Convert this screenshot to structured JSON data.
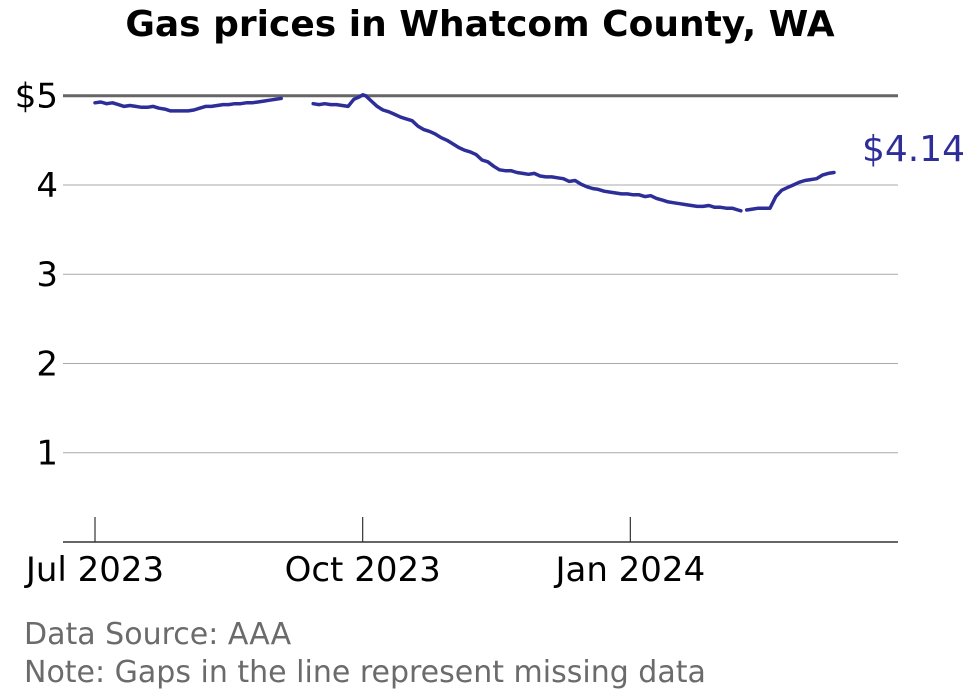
{
  "colors": {
    "line": "#2e2e99",
    "grid": "#aaaaaa",
    "threshold": "#666666",
    "axis": "#333333",
    "footer": "#6b6b6b"
  },
  "footer": {
    "source": "Data Source: AAA",
    "note": "Note: Gaps in the line represent missing data"
  },
  "chart_data": {
    "type": "line",
    "title": "Gas prices in Whatcom County, WA",
    "xlabel": "",
    "ylabel": "",
    "x_range": [
      "2023-06-20",
      "2024-04-02"
    ],
    "ylim": [
      0,
      5.4
    ],
    "y_ticks": [
      {
        "value": 1,
        "label": "1"
      },
      {
        "value": 2,
        "label": "2"
      },
      {
        "value": 3,
        "label": "3"
      },
      {
        "value": 4,
        "label": "4"
      },
      {
        "value": 5,
        "label": "$5"
      }
    ],
    "x_ticks": [
      {
        "date": "2023-07-01",
        "label": "Jul 2023"
      },
      {
        "date": "2023-10-01",
        "label": "Oct 2023"
      },
      {
        "date": "2024-01-01",
        "label": "Jan 2024"
      }
    ],
    "reference_line": {
      "value": 5
    },
    "grid": "horizontal",
    "end_label": "$4.14",
    "series": [
      {
        "segments": [
          [
            [
              "2023-07-01",
              4.92
            ],
            [
              "2023-07-03",
              4.93
            ],
            [
              "2023-07-05",
              4.91
            ],
            [
              "2023-07-07",
              4.92
            ],
            [
              "2023-07-09",
              4.9
            ],
            [
              "2023-07-11",
              4.88
            ],
            [
              "2023-07-13",
              4.89
            ],
            [
              "2023-07-15",
              4.88
            ],
            [
              "2023-07-17",
              4.87
            ],
            [
              "2023-07-19",
              4.87
            ],
            [
              "2023-07-21",
              4.88
            ],
            [
              "2023-07-23",
              4.86
            ],
            [
              "2023-07-25",
              4.85
            ],
            [
              "2023-07-27",
              4.83
            ],
            [
              "2023-07-29",
              4.83
            ],
            [
              "2023-07-31",
              4.83
            ],
            [
              "2023-08-02",
              4.83
            ],
            [
              "2023-08-04",
              4.84
            ],
            [
              "2023-08-06",
              4.86
            ],
            [
              "2023-08-08",
              4.88
            ],
            [
              "2023-08-10",
              4.88
            ],
            [
              "2023-08-12",
              4.89
            ],
            [
              "2023-08-14",
              4.9
            ],
            [
              "2023-08-16",
              4.9
            ],
            [
              "2023-08-18",
              4.91
            ],
            [
              "2023-08-20",
              4.91
            ],
            [
              "2023-08-22",
              4.92
            ],
            [
              "2023-08-24",
              4.92
            ],
            [
              "2023-08-26",
              4.93
            ],
            [
              "2023-08-28",
              4.94
            ],
            [
              "2023-08-30",
              4.95
            ],
            [
              "2023-09-01",
              4.96
            ],
            [
              "2023-09-03",
              4.97
            ]
          ],
          [
            [
              "2023-09-14",
              4.91
            ],
            [
              "2023-09-16",
              4.9
            ],
            [
              "2023-09-18",
              4.91
            ],
            [
              "2023-09-20",
              4.9
            ],
            [
              "2023-09-22",
              4.9
            ],
            [
              "2023-09-24",
              4.89
            ],
            [
              "2023-09-26",
              4.88
            ],
            [
              "2023-09-27",
              4.92
            ],
            [
              "2023-09-28",
              4.96
            ],
            [
              "2023-09-30",
              4.99
            ],
            [
              "2023-10-01",
              5.01
            ],
            [
              "2023-10-02",
              5.0
            ],
            [
              "2023-10-04",
              4.94
            ],
            [
              "2023-10-06",
              4.88
            ],
            [
              "2023-10-08",
              4.84
            ],
            [
              "2023-10-10",
              4.82
            ],
            [
              "2023-10-12",
              4.79
            ],
            [
              "2023-10-14",
              4.76
            ],
            [
              "2023-10-16",
              4.74
            ],
            [
              "2023-10-18",
              4.72
            ],
            [
              "2023-10-20",
              4.66
            ],
            [
              "2023-10-22",
              4.62
            ],
            [
              "2023-10-24",
              4.6
            ],
            [
              "2023-10-26",
              4.57
            ],
            [
              "2023-10-28",
              4.53
            ],
            [
              "2023-10-30",
              4.5
            ],
            [
              "2023-11-01",
              4.46
            ],
            [
              "2023-11-03",
              4.42
            ],
            [
              "2023-11-05",
              4.39
            ],
            [
              "2023-11-07",
              4.37
            ],
            [
              "2023-11-09",
              4.34
            ],
            [
              "2023-11-11",
              4.28
            ],
            [
              "2023-11-13",
              4.26
            ],
            [
              "2023-11-15",
              4.21
            ],
            [
              "2023-11-17",
              4.17
            ],
            [
              "2023-11-19",
              4.16
            ],
            [
              "2023-11-21",
              4.16
            ],
            [
              "2023-11-23",
              4.14
            ],
            [
              "2023-11-25",
              4.13
            ],
            [
              "2023-11-27",
              4.12
            ],
            [
              "2023-11-29",
              4.13
            ],
            [
              "2023-12-01",
              4.1
            ],
            [
              "2023-12-03",
              4.09
            ],
            [
              "2023-12-05",
              4.09
            ],
            [
              "2023-12-07",
              4.08
            ],
            [
              "2023-12-09",
              4.07
            ],
            [
              "2023-12-11",
              4.04
            ],
            [
              "2023-12-13",
              4.05
            ],
            [
              "2023-12-15",
              4.01
            ],
            [
              "2023-12-17",
              3.98
            ],
            [
              "2023-12-19",
              3.96
            ],
            [
              "2023-12-21",
              3.95
            ],
            [
              "2023-12-23",
              3.93
            ],
            [
              "2023-12-25",
              3.92
            ],
            [
              "2023-12-27",
              3.91
            ],
            [
              "2023-12-29",
              3.9
            ],
            [
              "2023-12-31",
              3.9
            ],
            [
              "2024-01-02",
              3.89
            ],
            [
              "2024-01-04",
              3.89
            ],
            [
              "2024-01-06",
              3.87
            ],
            [
              "2024-01-08",
              3.88
            ],
            [
              "2024-01-10",
              3.85
            ],
            [
              "2024-01-12",
              3.83
            ],
            [
              "2024-01-14",
              3.81
            ],
            [
              "2024-01-16",
              3.8
            ],
            [
              "2024-01-18",
              3.79
            ],
            [
              "2024-01-20",
              3.78
            ],
            [
              "2024-01-22",
              3.77
            ],
            [
              "2024-01-24",
              3.76
            ],
            [
              "2024-01-26",
              3.76
            ],
            [
              "2024-01-28",
              3.77
            ],
            [
              "2024-01-30",
              3.75
            ],
            [
              "2024-02-01",
              3.75
            ],
            [
              "2024-02-03",
              3.74
            ],
            [
              "2024-02-05",
              3.74
            ],
            [
              "2024-02-07",
              3.72
            ],
            [
              "2024-02-08",
              3.71
            ]
          ],
          [
            [
              "2024-02-10",
              3.72
            ],
            [
              "2024-02-12",
              3.73
            ],
            [
              "2024-02-14",
              3.74
            ],
            [
              "2024-02-16",
              3.74
            ],
            [
              "2024-02-18",
              3.74
            ],
            [
              "2024-02-20",
              3.87
            ],
            [
              "2024-02-22",
              3.94
            ],
            [
              "2024-02-24",
              3.97
            ],
            [
              "2024-02-26",
              4.0
            ],
            [
              "2024-02-28",
              4.03
            ],
            [
              "2024-03-01",
              4.05
            ],
            [
              "2024-03-03",
              4.06
            ],
            [
              "2024-03-05",
              4.07
            ],
            [
              "2024-03-07",
              4.11
            ],
            [
              "2024-03-09",
              4.13
            ],
            [
              "2024-03-11",
              4.14
            ]
          ]
        ]
      }
    ]
  }
}
